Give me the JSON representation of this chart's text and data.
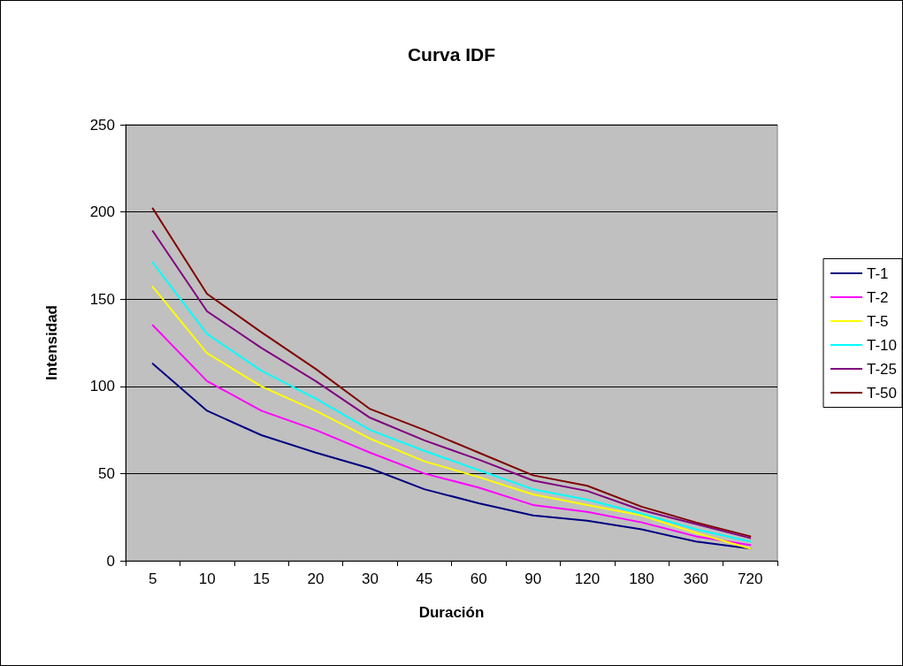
{
  "chart_data": {
    "type": "line",
    "title": "Curva IDF",
    "xlabel": "Duración",
    "ylabel": "Intensidad",
    "categories": [
      "5",
      "10",
      "15",
      "20",
      "30",
      "45",
      "60",
      "90",
      "120",
      "180",
      "360",
      "720"
    ],
    "ylim": [
      0,
      250
    ],
    "yticks": [
      0,
      50,
      100,
      150,
      200,
      250
    ],
    "grid": "y",
    "legend": "right",
    "marker": "none",
    "line_style": "solid",
    "series": [
      {
        "name": "T-1",
        "color": "#000080",
        "values": [
          113,
          86,
          72,
          62,
          53,
          41,
          33,
          26,
          23,
          18,
          11,
          7
        ]
      },
      {
        "name": "T-2",
        "color": "#ff00ff",
        "values": [
          135,
          103,
          86,
          75,
          62,
          50,
          42,
          32,
          28,
          22,
          14,
          9
        ]
      },
      {
        "name": "T-5",
        "color": "#ffff00",
        "values": [
          157,
          119,
          100,
          86,
          70,
          57,
          48,
          38,
          32,
          26,
          16,
          7
        ]
      },
      {
        "name": "T-10",
        "color": "#00ffff",
        "values": [
          171,
          130,
          109,
          93,
          75,
          63,
          52,
          41,
          35,
          27,
          18,
          11
        ]
      },
      {
        "name": "T-25",
        "color": "#800080",
        "values": [
          189,
          143,
          122,
          103,
          82,
          69,
          58,
          46,
          40,
          29,
          21,
          13
        ]
      },
      {
        "name": "T-50",
        "color": "#800000",
        "values": [
          202,
          153,
          131,
          110,
          87,
          75,
          62,
          49,
          43,
          31,
          22,
          14
        ]
      }
    ]
  }
}
